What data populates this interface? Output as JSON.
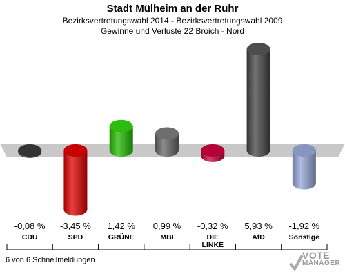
{
  "header": {
    "title": "Stadt Mülheim an der Ruhr",
    "subtitle_1": "Bezirksvertretungswahl 2014 - Bezirksvertretungswahl 2009",
    "subtitle_2": "Gewinne und Verluste 22 Broich - Nord"
  },
  "footer": {
    "note": "6 von 6 Schnellmeldungen",
    "watermark_line1": "VOTE",
    "watermark_line2": "MANAGER"
  },
  "chart_data": {
    "type": "bar",
    "categories": [
      "CDU",
      "SPD",
      "GRÜNE",
      "MBI",
      "DIE LINKE",
      "AfD",
      "Sonstige"
    ],
    "values": [
      -0.08,
      -3.45,
      1.42,
      0.99,
      -0.32,
      5.93,
      -1.92
    ],
    "value_labels": [
      "-0,08 %",
      "-3,45 %",
      "1,42 %",
      "0,99 %",
      "-0,32 %",
      "5,93 %",
      "-1,92 %"
    ],
    "colors": [
      "#3a3a3a",
      "#dd0000",
      "#22bb00",
      "#666666",
      "#c8003c",
      "#444444",
      "#95a5d6"
    ],
    "ylim": [
      -3.45,
      5.93
    ],
    "grid": false,
    "legend": "none"
  }
}
